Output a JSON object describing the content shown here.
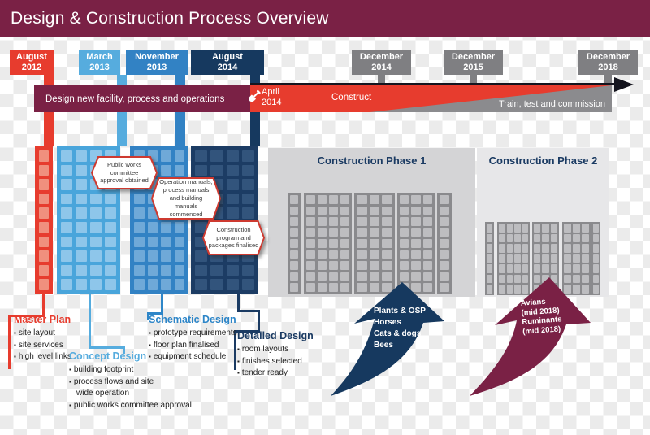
{
  "header": {
    "title": "Design & Construction Process Overview"
  },
  "palette": {
    "maroon": "#7A2145",
    "red": "#E73C2E",
    "light_blue": "#56ACDE",
    "medium_blue": "#3282C4",
    "navy": "#16395F",
    "gray": "#7F7F82",
    "phase1_panel": "#D4D4D6",
    "phase2_panel": "#E7E7E9"
  },
  "milestones": [
    {
      "id": "august-2012",
      "label": "August\n2012"
    },
    {
      "id": "march-2013",
      "label": "March\n2013"
    },
    {
      "id": "november-2013",
      "label": "November\n2013"
    },
    {
      "id": "august-2014",
      "label": "August\n2014"
    },
    {
      "id": "december-2014",
      "label": "December\n2014"
    },
    {
      "id": "december-2015",
      "label": "December\n2015"
    },
    {
      "id": "december-2018",
      "label": "December\n2018"
    }
  ],
  "process_bar": {
    "design_label": "Design new facility, process and operations",
    "april_marker": "April\n2014",
    "construct_label": "Construct",
    "train_label": "Train, test and commission"
  },
  "callouts": [
    {
      "text": "Public works\ncommittee\napproval obtained"
    },
    {
      "text": "Operation manuals,\nprocess manuals\nand building\nmanuals\ncommenced"
    },
    {
      "text": "Construction\nprogram and\npackages finalised"
    }
  ],
  "phases": [
    {
      "title": "Construction Phase 1"
    },
    {
      "title": "Construction Phase 2"
    }
  ],
  "stages": [
    {
      "title": "Master Plan",
      "items": [
        "site layout",
        "site services",
        "high level links"
      ]
    },
    {
      "title": "Concept Design",
      "items": [
        "building footprint",
        "process flows and site\nwide operation",
        "public works committee approval"
      ]
    },
    {
      "title": "Schematic Design",
      "items": [
        "prototype requirements",
        "floor plan finalised",
        "equipment schedule"
      ]
    },
    {
      "title": "Detailed Design",
      "items": [
        "room layouts",
        "finishes selected",
        "tender ready"
      ]
    }
  ],
  "arrows": [
    {
      "lines": [
        "Plants & OSP",
        "Horses",
        "Cats & dogs",
        "Bees"
      ]
    },
    {
      "lines": [
        "Avians",
        "(mid 2018)",
        "Ruminants",
        "(mid 2018)"
      ]
    }
  ]
}
